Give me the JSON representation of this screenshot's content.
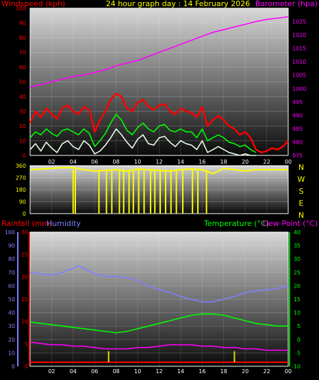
{
  "chart_data": [
    {
      "type": "line",
      "title": "24 hour graph day : 14 February 2026",
      "left_axis_label": "Windspeed (kph)",
      "right_axis_label": "Barometer (hpa)",
      "x_ticks": [
        "02",
        "04",
        "06",
        "08",
        "10",
        "12",
        "14",
        "16",
        "18",
        "20",
        "22",
        "00"
      ],
      "xlim": [
        0,
        24
      ],
      "ylim_left": [
        0,
        100
      ],
      "ylim_right": [
        975,
        1030
      ],
      "y_ticks_left": [
        0,
        10,
        20,
        30,
        40,
        50,
        60,
        70,
        80,
        90,
        100
      ],
      "y_ticks_right": [
        975,
        980,
        985,
        990,
        995,
        1000,
        1005,
        1010,
        1015,
        1020,
        1025
      ],
      "colors": {
        "title": "#ffff00",
        "left_axis_label": "#ff0000",
        "right_axis_label": "#ff00ff",
        "x_ticks": "#ffffff"
      },
      "series": [
        {
          "color": "#ff0000",
          "axis": "left",
          "x": [
            0,
            0.5,
            1,
            1.5,
            2,
            2.5,
            3,
            3.5,
            4,
            4.5,
            5,
            5.5,
            6,
            6.5,
            7,
            7.5,
            8,
            8.5,
            9,
            9.5,
            10,
            10.5,
            11,
            11.5,
            12,
            12.5,
            13,
            13.5,
            14,
            14.5,
            15,
            15.5,
            16,
            16.5,
            17,
            17.5,
            18,
            18.5,
            19,
            19.5,
            20,
            20.5,
            21,
            21.5,
            22,
            22.5,
            23,
            23.5,
            24
          ],
          "values": [
            22,
            30,
            26,
            32,
            28,
            25,
            32,
            34,
            30,
            28,
            33,
            31,
            16,
            24,
            30,
            38,
            42,
            40,
            32,
            30,
            36,
            38,
            33,
            31,
            34,
            35,
            30,
            28,
            32,
            30,
            29,
            26,
            33,
            20,
            24,
            27,
            24,
            20,
            18,
            14,
            16,
            12,
            4,
            2,
            3,
            5,
            4,
            6,
            10
          ]
        },
        {
          "color": "#00ff00",
          "axis": "left",
          "x": [
            0,
            0.5,
            1,
            1.5,
            2,
            2.5,
            3,
            3.5,
            4,
            4.5,
            5,
            5.5,
            6,
            6.5,
            7,
            7.5,
            8,
            8.5,
            9,
            9.5,
            10,
            10.5,
            11,
            11.5,
            12,
            12.5,
            13,
            13.5,
            14,
            14.5,
            15,
            15.5,
            16,
            16.5,
            17,
            17.5,
            18,
            18.5,
            19,
            19.5,
            20,
            20.5,
            21
          ],
          "values": [
            12,
            16,
            14,
            18,
            15,
            13,
            17,
            18,
            16,
            14,
            18,
            15,
            6,
            10,
            15,
            22,
            28,
            24,
            17,
            14,
            19,
            22,
            18,
            16,
            20,
            21,
            17,
            16,
            18,
            16,
            16,
            12,
            18,
            10,
            12,
            14,
            12,
            9,
            8,
            6,
            7,
            4,
            2
          ]
        },
        {
          "color": "#e8ffe8",
          "axis": "left",
          "x": [
            0,
            0.5,
            1,
            1.5,
            2,
            2.5,
            3,
            3.5,
            4,
            4.5,
            5,
            5.5,
            6,
            6.5,
            7,
            7.5,
            8,
            8.5,
            9,
            9.5,
            10,
            10.5,
            11,
            11.5,
            12,
            12.5,
            13,
            13.5,
            14,
            14.5,
            15,
            15.5,
            16,
            16.5,
            17,
            17.5,
            18,
            18.5,
            19,
            19.5,
            20,
            20.5,
            21
          ],
          "values": [
            4,
            8,
            3,
            9,
            5,
            2,
            8,
            10,
            6,
            4,
            10,
            7,
            1,
            3,
            7,
            12,
            18,
            14,
            9,
            5,
            11,
            14,
            8,
            7,
            12,
            13,
            9,
            6,
            10,
            8,
            7,
            4,
            10,
            2,
            4,
            6,
            4,
            2,
            1,
            0,
            1,
            0,
            0
          ]
        },
        {
          "color": "#ff00ff",
          "axis": "right",
          "x": [
            0,
            1,
            2,
            3,
            4,
            5,
            6,
            7,
            8,
            9,
            10,
            11,
            12,
            13,
            14,
            15,
            16,
            17,
            18,
            19,
            20,
            21,
            22,
            23,
            24
          ],
          "values": [
            1000.5,
            1001.5,
            1002.5,
            1003.5,
            1004.5,
            1005.0,
            1006.0,
            1007.0,
            1008.5,
            1009.5,
            1010.5,
            1012.0,
            1013.5,
            1015.0,
            1016.5,
            1018.0,
            1019.5,
            1021.0,
            1022.0,
            1023.0,
            1024.0,
            1025.0,
            1025.8,
            1026.3,
            1026.8
          ]
        }
      ]
    },
    {
      "type": "line",
      "title": "",
      "ylim": [
        0,
        360
      ],
      "y_ticks": [
        0,
        90,
        180,
        270,
        360
      ],
      "direction_labels": [
        "N",
        "W",
        "S",
        "E",
        "N"
      ],
      "colors": {
        "labels": "#ffff00",
        "series": "#ffff00"
      },
      "series": [
        {
          "color": "#ffff00",
          "x": [
            0,
            1,
            2,
            3,
            4,
            5,
            6,
            7,
            8,
            9,
            10,
            11,
            12,
            13,
            14,
            15,
            16,
            17,
            18,
            19,
            20,
            21,
            22,
            23,
            24
          ],
          "values": [
            330,
            335,
            340,
            345,
            345,
            330,
            320,
            325,
            330,
            320,
            335,
            330,
            325,
            320,
            330,
            335,
            330,
            300,
            340,
            330,
            320,
            330,
            330,
            330,
            330
          ]
        }
      ],
      "drops_to_zero_hours": [
        4.0,
        4.2,
        6.4,
        7.1,
        7.6,
        8.3,
        8.7,
        9.2,
        9.6,
        10.1,
        10.6,
        11.2,
        11.6,
        12.1,
        12.6,
        13.1,
        13.6,
        14.2,
        15.1,
        15.6,
        16.4
      ]
    },
    {
      "type": "line",
      "left_labels": {
        "rainfall": "Rainfall (mm)",
        "humidity": "Humidity"
      },
      "right_labels": {
        "temperature": "Temperature (°C)",
        "dew_point": "Dew Point (°C)"
      },
      "x_ticks": [
        "02",
        "04",
        "06",
        "08",
        "10",
        "12",
        "14",
        "16",
        "18",
        "20",
        "22",
        "00"
      ],
      "xlim": [
        0,
        24
      ],
      "humidity_ticks": [
        0,
        10,
        20,
        30,
        40,
        50,
        60,
        70,
        80,
        90,
        100
      ],
      "rain_ticks": [
        0,
        5,
        10,
        15,
        20,
        25,
        30
      ],
      "temp_ticks": [
        -10,
        -5,
        0,
        5,
        10,
        15,
        20,
        25,
        30,
        35,
        40
      ],
      "ylim_humidity": [
        0,
        100
      ],
      "ylim_rain": [
        0,
        30
      ],
      "ylim_temp": [
        -10,
        40
      ],
      "colors": {
        "rainfall": "#ff0000",
        "humidity": "#8080ff",
        "temperature": "#00ff00",
        "dew_point": "#ff00ff",
        "rain_bars": "#dddd00"
      },
      "series": [
        {
          "name": "Humidity",
          "color": "#8080ff",
          "axis": "humidity",
          "x": [
            0,
            1,
            2,
            3,
            4,
            4.5,
            5,
            6,
            7,
            8,
            9,
            10,
            11,
            12,
            13,
            14,
            15,
            16,
            17,
            18,
            19,
            20,
            21,
            22,
            23,
            24
          ],
          "values": [
            70,
            69,
            68,
            70,
            73,
            75,
            73,
            69,
            67,
            67,
            66,
            64,
            60,
            57,
            55,
            52,
            50,
            48,
            48,
            50,
            52,
            55,
            56,
            57,
            58,
            60
          ]
        },
        {
          "name": "Temperature (°C)",
          "color": "#00ff00",
          "axis": "temp",
          "x": [
            0,
            1,
            2,
            3,
            4,
            5,
            6,
            7,
            8,
            9,
            10,
            11,
            12,
            13,
            14,
            15,
            16,
            17,
            18,
            19,
            20,
            21,
            22,
            23,
            24
          ],
          "values": [
            6.5,
            6,
            5.5,
            5,
            4.5,
            4,
            3.5,
            3,
            2.5,
            3,
            4,
            5,
            6,
            7,
            8,
            9,
            9.5,
            9.5,
            9,
            8,
            7,
            6,
            5.5,
            5,
            5
          ]
        },
        {
          "name": "Dew Point (°C)",
          "color": "#ff00ff",
          "axis": "temp",
          "x": [
            0,
            1,
            2,
            3,
            4,
            5,
            6,
            7,
            8,
            9,
            10,
            11,
            12,
            13,
            14,
            15,
            16,
            17,
            18,
            19,
            20,
            21,
            22,
            23,
            24
          ],
          "values": [
            -1,
            -1.5,
            -2,
            -2,
            -2.5,
            -2.5,
            -3,
            -3.5,
            -3.5,
            -3.5,
            -3,
            -3,
            -2.5,
            -2,
            -2,
            -2,
            -2.5,
            -2.5,
            -3,
            -3,
            -3.5,
            -3.5,
            -4,
            -4,
            -4
          ]
        }
      ],
      "rain_bar_hours": [
        7.3,
        19.0
      ]
    }
  ]
}
